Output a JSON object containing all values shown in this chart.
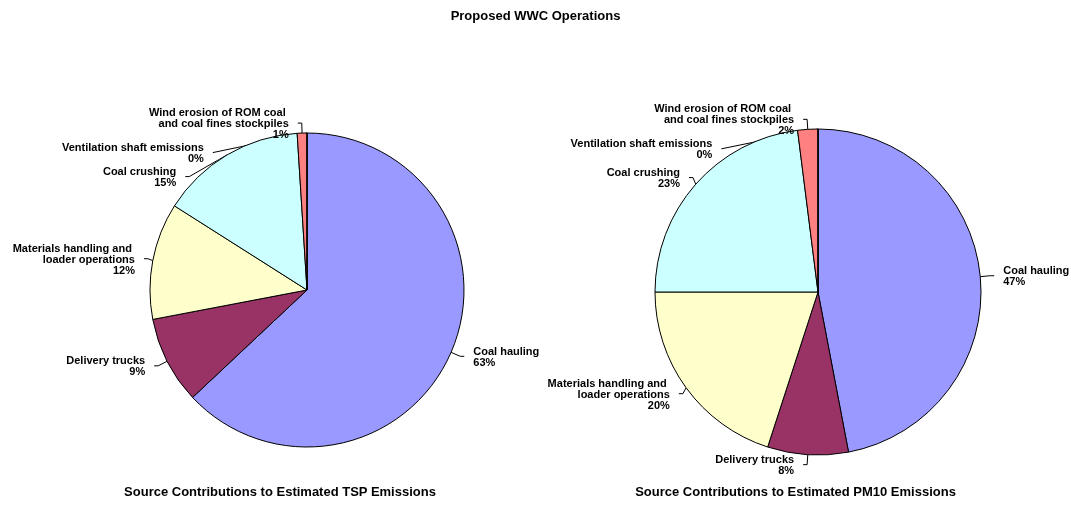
{
  "chart_data": [
    {
      "type": "pie",
      "title": "Source Contributions to Estimated TSP Emissions",
      "annotations": [
        "Proposed WWC Operations"
      ],
      "categories": [
        "Coal hauling",
        "Delivery trucks",
        "Materials handling and loader operations",
        "Coal crushing",
        "Wind erosion of ROM coal and coal fines stockpiles",
        "Ventilation shaft emissions"
      ],
      "values": [
        63,
        9,
        12,
        15,
        1,
        0
      ],
      "value_labels": [
        "63%",
        "9%",
        "12%",
        "15%",
        "1%",
        "0%"
      ],
      "colors": [
        "#9999ff",
        "#993366",
        "#ffffcc",
        "#ccffff",
        "#ff8080",
        "#ffffff"
      ],
      "legend": false
    },
    {
      "type": "pie",
      "title": "Source Contributions to Estimated PM10 Emissions",
      "categories": [
        "Coal hauling",
        "Delivery trucks",
        "Materials handling and loader operations",
        "Coal crushing",
        "Wind erosion of ROM coal and coal fines stockpiles",
        "Ventilation shaft emissions"
      ],
      "values": [
        47,
        8,
        20,
        23,
        2,
        0
      ],
      "value_labels": [
        "47%",
        "8%",
        "20%",
        "23%",
        "2%",
        "0%"
      ],
      "colors": [
        "#9999ff",
        "#993366",
        "#ffffcc",
        "#ccffff",
        "#ff8080",
        "#ffffff"
      ],
      "legend": false
    }
  ]
}
